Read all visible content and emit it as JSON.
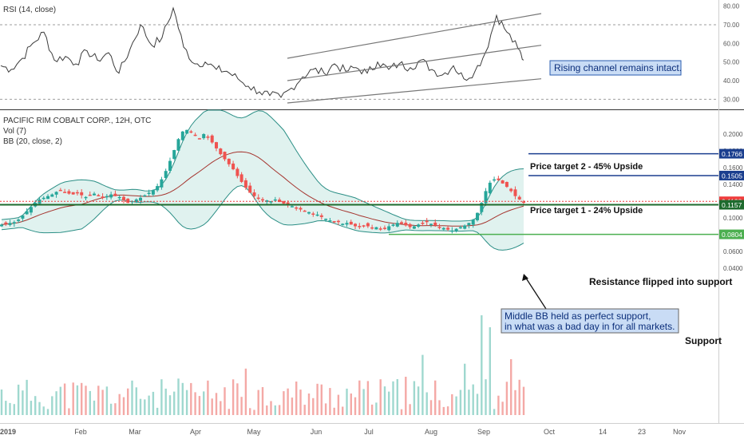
{
  "colors": {
    "bg": "#ffffff",
    "up": "#26a69a",
    "down": "#ef5350",
    "bb_fill": "#e0f2ef",
    "bb_band": "#2c8f86",
    "bb_basis": "#a5352f",
    "rsi_line": "#3a3a3a",
    "resistance": "#1e6b2e",
    "support": "#4caf50",
    "target": "#1b3f8f",
    "price_label": "#ef3c3c",
    "rsi_box_bg": "#c9dcf5",
    "rsi_box_border": "#2a5db0",
    "note_box_bg": "#c9dcf5"
  },
  "chart_data": [
    {
      "type": "line",
      "title": "RSI (14, close)",
      "ylim": [
        25,
        82
      ],
      "y_ticks": [
        "80.00",
        "70.00",
        "60.00",
        "50.00",
        "40.00",
        "30.00"
      ],
      "levels": [
        30,
        70
      ],
      "x": [
        1,
        14,
        28,
        41,
        55,
        68,
        82,
        95,
        109,
        122,
        136,
        149,
        163,
        176,
        190,
        203,
        217,
        230,
        244,
        257,
        271,
        284,
        298,
        311,
        325,
        338,
        352,
        365,
        379,
        392,
        406,
        419,
        433,
        446,
        460,
        473,
        487,
        500,
        514,
        527,
        541,
        554,
        568,
        581,
        595,
        608,
        622,
        635,
        649,
        656
      ],
      "values": [
        48,
        46,
        52,
        60,
        66,
        51,
        53,
        49,
        56,
        51,
        55,
        44,
        57,
        70,
        59,
        63,
        79,
        58,
        49,
        50,
        46,
        45,
        41,
        37,
        34,
        32,
        31,
        36,
        42,
        46,
        44,
        49,
        45,
        47,
        44,
        50,
        46,
        49,
        47,
        51,
        46,
        43,
        48,
        41,
        45,
        55,
        75,
        66,
        57,
        51
      ],
      "channel_lines": [
        {
          "from": [
            360,
            52
          ],
          "to": [
            678,
            76
          ]
        },
        {
          "from": [
            360,
            40
          ],
          "to": [
            678,
            59
          ]
        },
        {
          "from": [
            360,
            28
          ],
          "to": [
            678,
            41
          ]
        }
      ],
      "annotation": "Rising channel remains intact."
    },
    {
      "type": "candlestick",
      "title": "PACIFIC RIM COBALT CORP., 12H, OTC",
      "indicators": [
        "Vol (7)",
        "BB (20, close, 2)"
      ],
      "ylim": [
        0.033,
        0.21
      ],
      "y_ticks": [
        "0.2000",
        "0.1800",
        "0.1600",
        "0.1400",
        "0.1200",
        "0.1000",
        "0.0800",
        "0.0600",
        "0.0400"
      ],
      "x_labels": [
        "2019",
        "Feb",
        "Mar",
        "Apr",
        "May",
        "Jun",
        "Jul",
        "Aug",
        "Sep",
        "Oct",
        "14",
        "23",
        "Nov"
      ],
      "close_series": [
        0.092,
        0.093,
        0.094,
        0.095,
        0.098,
        0.103,
        0.108,
        0.113,
        0.118,
        0.122,
        0.124,
        0.126,
        0.128,
        0.131,
        0.133,
        0.131,
        0.129,
        0.128,
        0.13,
        0.127,
        0.125,
        0.127,
        0.129,
        0.126,
        0.124,
        0.126,
        0.128,
        0.126,
        0.125,
        0.121,
        0.118,
        0.12,
        0.122,
        0.124,
        0.127,
        0.13,
        0.133,
        0.138,
        0.146,
        0.156,
        0.168,
        0.181,
        0.194,
        0.203,
        0.205,
        0.202,
        0.198,
        0.195,
        0.2,
        0.196,
        0.19,
        0.183,
        0.176,
        0.17,
        0.164,
        0.158,
        0.15,
        0.143,
        0.136,
        0.13,
        0.126,
        0.124,
        0.122,
        0.121,
        0.12,
        0.122,
        0.119,
        0.117,
        0.116,
        0.114,
        0.112,
        0.11,
        0.108,
        0.107,
        0.105,
        0.104,
        0.101,
        0.099,
        0.097,
        0.096,
        0.095,
        0.093,
        0.094,
        0.092,
        0.09,
        0.089,
        0.091,
        0.09,
        0.088,
        0.089,
        0.087,
        0.088,
        0.09,
        0.092,
        0.094,
        0.093,
        0.091,
        0.089,
        0.09,
        0.092,
        0.094,
        0.095,
        0.093,
        0.091,
        0.089,
        0.088,
        0.086,
        0.085,
        0.087,
        0.089,
        0.091,
        0.094,
        0.098,
        0.106,
        0.118,
        0.132,
        0.142,
        0.146,
        0.145,
        0.141,
        0.137,
        0.132,
        0.126,
        0.122,
        0.119
      ],
      "levels": [
        {
          "value": 0.1766,
          "text": "Price target 2 - 45% Upside",
          "color": "#1b3f8f"
        },
        {
          "value": 0.1505,
          "text": "Price target 1 - 24% Upside",
          "color": "#1b3f8f"
        },
        {
          "value": 0.1157,
          "text": "Resistance flipped into support",
          "color": "#1e6b2e"
        },
        {
          "value": 0.0804,
          "text": "Support",
          "color": "#4caf50"
        }
      ],
      "last_price": 0.1198,
      "price_labels": [
        {
          "value": 0.1766,
          "text": "0.1766",
          "color": "#1b3f8f"
        },
        {
          "value": 0.1505,
          "text": "0.1505",
          "color": "#1b3f8f"
        },
        {
          "value": 0.1198,
          "text": "0.1198",
          "color": "#ef3c3c"
        },
        {
          "value": 0.1157,
          "text": "0.1157",
          "color": "#1e6b2e"
        },
        {
          "value": 0.0804,
          "text": "0.0804",
          "color": "#4caf50"
        }
      ],
      "note": [
        "Middle BB held as perfect support,",
        "in what was a bad day in for all markets."
      ]
    }
  ],
  "labels": {
    "rsi_title": "RSI (14, close)",
    "rsi_note": "Rising channel remains intact.",
    "main_title": "PACIFIC RIM COBALT CORP., 12H, OTC",
    "vol_label": "Vol (7)",
    "bb_label": "BB (20, close, 2)",
    "target2": "Price target 2 - 45% Upside",
    "target1": "Price target 1 - 24% Upside",
    "resistance": "Resistance flipped into support",
    "support": "Support",
    "note_line1": "Middle BB held as perfect support,",
    "note_line2": "in what was a bad day in for all markets."
  }
}
